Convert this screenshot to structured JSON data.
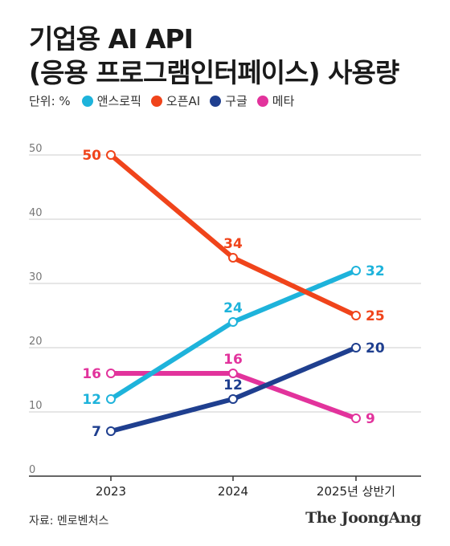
{
  "title_line1": "기업용 AI API",
  "title_line2": "(응용 프로그램인터페이스) 사용량",
  "unit_label": "단위: %",
  "source": "자료: 멘로벤처스",
  "brand": "The JoongAng",
  "colors": {
    "anthropic": "#1eb3db",
    "openai": "#f0441b",
    "google": "#1f3f8f",
    "meta": "#e2339c",
    "grid": "#cccccc",
    "axis": "#333333"
  },
  "chart_data": {
    "type": "line",
    "categories": [
      "2023",
      "2024",
      "2025년 상반기"
    ],
    "ylim": [
      0,
      50
    ],
    "yticks": [
      0,
      10,
      20,
      30,
      40,
      50
    ],
    "grid": true,
    "legend_position": "top",
    "series": [
      {
        "name": "앤스로픽",
        "color_key": "anthropic",
        "values": [
          12,
          24,
          32
        ]
      },
      {
        "name": "오픈AI",
        "color_key": "openai",
        "values": [
          50,
          34,
          25
        ]
      },
      {
        "name": "구글",
        "color_key": "google",
        "values": [
          7,
          12,
          20
        ]
      },
      {
        "name": "메타",
        "color_key": "meta",
        "values": [
          16,
          16,
          9
        ]
      }
    ]
  }
}
